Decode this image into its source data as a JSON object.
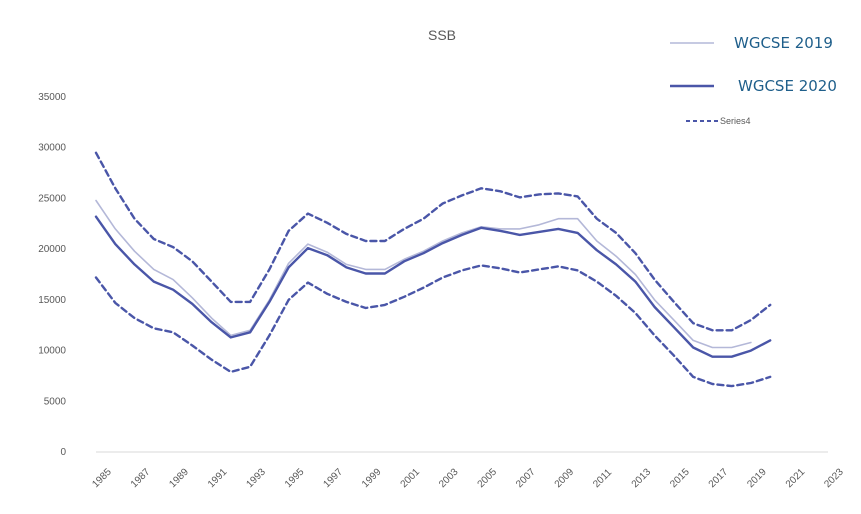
{
  "chart_data": {
    "type": "line",
    "title": "SSB",
    "xlabel": "",
    "ylabel": "",
    "xlim": [
      1985,
      2023
    ],
    "ylim": [
      0,
      35000
    ],
    "yticks": [
      0,
      5000,
      10000,
      15000,
      20000,
      25000,
      30000,
      35000
    ],
    "xticks": [
      1985,
      1987,
      1989,
      1991,
      1993,
      1995,
      1997,
      1999,
      2001,
      2003,
      2005,
      2007,
      2009,
      2011,
      2013,
      2015,
      2017,
      2019,
      2021,
      2023
    ],
    "grid": false,
    "legend_position": "top-right",
    "series": [
      {
        "name": "WGCSE 2019",
        "color": "#b4b8d8",
        "style": "solid",
        "x": [
          1985,
          1986,
          1987,
          1988,
          1989,
          1990,
          1991,
          1992,
          1993,
          1994,
          1995,
          1996,
          1997,
          1998,
          1999,
          2000,
          2001,
          2002,
          2003,
          2004,
          2005,
          2006,
          2007,
          2008,
          2009,
          2010,
          2011,
          2012,
          2013,
          2014,
          2015,
          2016,
          2017,
          2018,
          2019
        ],
        "values": [
          24800,
          22000,
          19800,
          18000,
          17000,
          15200,
          13200,
          11500,
          12000,
          15000,
          18600,
          20500,
          19700,
          18500,
          18000,
          18000,
          19000,
          19800,
          20800,
          21600,
          22200,
          22000,
          22000,
          22400,
          23000,
          23000,
          20800,
          19300,
          17500,
          15000,
          13000,
          11000,
          10300,
          10300,
          10800
        ]
      },
      {
        "name": "WGCSE 2020",
        "color": "#4a56a8",
        "style": "solid",
        "x": [
          1985,
          1986,
          1987,
          1988,
          1989,
          1990,
          1991,
          1992,
          1993,
          1994,
          1995,
          1996,
          1997,
          1998,
          1999,
          2000,
          2001,
          2002,
          2003,
          2004,
          2005,
          2006,
          2007,
          2008,
          2009,
          2010,
          2011,
          2012,
          2013,
          2014,
          2015,
          2016,
          2017,
          2018,
          2019,
          2020
        ],
        "values": [
          23200,
          20500,
          18500,
          16800,
          16000,
          14600,
          12800,
          11300,
          11800,
          14800,
          18200,
          20100,
          19400,
          18200,
          17600,
          17600,
          18800,
          19600,
          20600,
          21400,
          22100,
          21800,
          21400,
          21700,
          22000,
          21600,
          19900,
          18500,
          16800,
          14300,
          12300,
          10300,
          9400,
          9400,
          10000,
          11000
        ]
      },
      {
        "name": "Series4",
        "color": "#4a56a8",
        "style": "dashed",
        "x": [
          1985,
          1986,
          1987,
          1988,
          1989,
          1990,
          1991,
          1992,
          1993,
          1994,
          1995,
          1996,
          1997,
          1998,
          1999,
          2000,
          2001,
          2002,
          2003,
          2004,
          2005,
          2006,
          2007,
          2008,
          2009,
          2010,
          2011,
          2012,
          2013,
          2014,
          2015,
          2016,
          2017,
          2018,
          2019,
          2020
        ],
        "values": [
          29500,
          26000,
          23000,
          21000,
          20200,
          18800,
          16800,
          14800,
          14800,
          18000,
          21800,
          23500,
          22600,
          21500,
          20800,
          20800,
          22000,
          23000,
          24500,
          25300,
          26000,
          25700,
          25100,
          25400,
          25500,
          25200,
          23000,
          21600,
          19600,
          17000,
          14800,
          12700,
          12000,
          12000,
          13000,
          14500
        ]
      },
      {
        "name": "",
        "color": "#4a56a8",
        "style": "dashed",
        "x": [
          1985,
          1986,
          1987,
          1988,
          1989,
          1990,
          1991,
          1992,
          1993,
          1994,
          1995,
          1996,
          1997,
          1998,
          1999,
          2000,
          2001,
          2002,
          2003,
          2004,
          2005,
          2006,
          2007,
          2008,
          2009,
          2010,
          2011,
          2012,
          2013,
          2014,
          2015,
          2016,
          2017,
          2018,
          2019,
          2020
        ],
        "values": [
          17200,
          14700,
          13200,
          12200,
          11800,
          10500,
          9100,
          7900,
          8400,
          11500,
          15000,
          16700,
          15600,
          14800,
          14200,
          14500,
          15300,
          16200,
          17200,
          17900,
          18400,
          18100,
          17700,
          18000,
          18300,
          17900,
          16800,
          15400,
          13700,
          11500,
          9500,
          7400,
          6700,
          6500,
          6800,
          7400
        ]
      }
    ],
    "legend": [
      {
        "label": "WGCSE 2019",
        "color": "#b4b8d8",
        "style": "solid"
      },
      {
        "label": "WGCSE 2020",
        "color": "#4a56a8",
        "style": "solid"
      },
      {
        "label": "Series4",
        "color": "#4a56a8",
        "style": "dashed"
      }
    ]
  }
}
